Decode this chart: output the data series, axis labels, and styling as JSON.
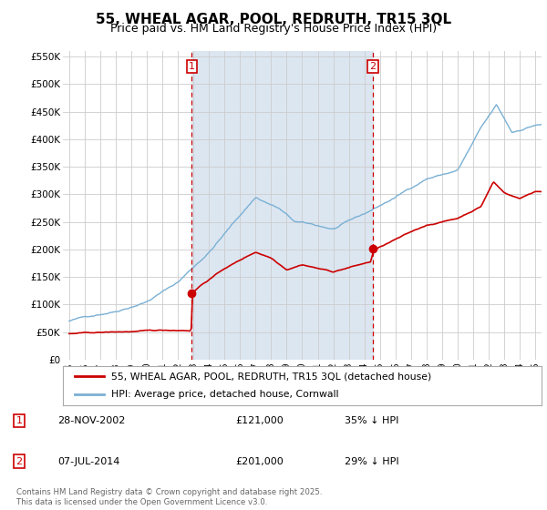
{
  "title": "55, WHEAL AGAR, POOL, REDRUTH, TR15 3QL",
  "subtitle": "Price paid vs. HM Land Registry's House Price Index (HPI)",
  "ylim": [
    0,
    560000
  ],
  "yticks": [
    0,
    50000,
    100000,
    150000,
    200000,
    250000,
    300000,
    350000,
    400000,
    450000,
    500000,
    550000
  ],
  "yticklabels": [
    "£0",
    "£50K",
    "£100K",
    "£150K",
    "£200K",
    "£250K",
    "£300K",
    "£350K",
    "£400K",
    "£450K",
    "£500K",
    "£550K"
  ],
  "plot_bg_color": "#ffffff",
  "shade_color": "#dce6f1",
  "hpi_color": "#7ab0d4",
  "price_color": "#cc0000",
  "vline_color": "#cc0000",
  "grid_color": "#cccccc",
  "legend_line1": "55, WHEAL AGAR, POOL, REDRUTH, TR15 3QL (detached house)",
  "legend_line2": "HPI: Average price, detached house, Cornwall",
  "annotation1_label": "1",
  "annotation1_date": "28-NOV-2002",
  "annotation1_price": "£121,000",
  "annotation1_hpi": "35% ↓ HPI",
  "annotation2_label": "2",
  "annotation2_date": "07-JUL-2014",
  "annotation2_price": "£201,000",
  "annotation2_hpi": "29% ↓ HPI",
  "footer": "Contains HM Land Registry data © Crown copyright and database right 2025.\nThis data is licensed under the Open Government Licence v3.0.",
  "title_fontsize": 11,
  "subtitle_fontsize": 9,
  "vline1_x": 2002.9,
  "vline2_x": 2014.55,
  "marker1_x": 2002.9,
  "marker1_y": 121000,
  "marker2_x": 2014.55,
  "marker2_y": 201000,
  "xlim_left": 1994.6,
  "xlim_right": 2025.4
}
